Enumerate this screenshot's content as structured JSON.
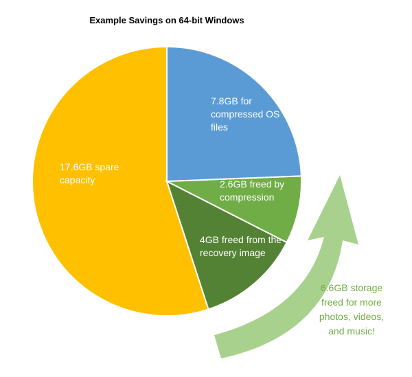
{
  "chart_data": {
    "type": "pie",
    "title": "Example Savings on 64-bit Windows",
    "values": [
      7.8,
      2.6,
      4,
      17.6
    ],
    "value_labels": [
      "7.8GB for compressed OS files",
      "2.6GB freed by compression",
      "4GB freed from the recovery image",
      "17.6GB spare capacity"
    ],
    "colors": [
      "#5b9bd5",
      "#70ad47",
      "#548235",
      "#ffc000"
    ],
    "annotation": "6.6GB storage freed for more photos, videos, and music!"
  }
}
